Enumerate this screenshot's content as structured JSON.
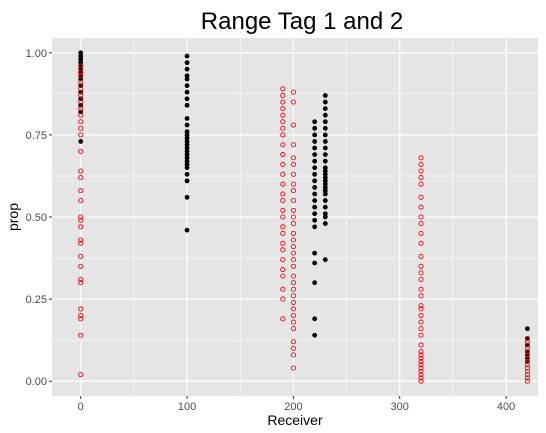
{
  "chart_data": {
    "type": "scatter",
    "title": "Range Tag 1 and 2",
    "xlabel": "Receiver",
    "ylabel": "prop",
    "xlim": [
      -27,
      430
    ],
    "ylim": [
      -0.045,
      1.045
    ],
    "x_ticks": [
      0,
      100,
      200,
      300,
      400
    ],
    "x_tick_labels": [
      "0",
      "100",
      "200",
      "300",
      "400"
    ],
    "y_ticks": [
      0,
      0.25,
      0.5,
      0.75,
      1
    ],
    "y_tick_labels": [
      "0.00",
      "0.25",
      "0.50",
      "0.75",
      "1.00"
    ],
    "grid": true,
    "panel_background": "#e5e5e5",
    "grid_color": "#ffffff",
    "legend": "none",
    "series": [
      {
        "marker": "filled-circle",
        "color": "#000000",
        "points": [
          [
            0,
            1.0
          ],
          [
            0,
            0.99
          ],
          [
            0,
            0.98
          ],
          [
            0,
            0.97
          ],
          [
            0,
            0.96
          ],
          [
            0,
            0.95
          ],
          [
            0,
            0.94
          ],
          [
            0,
            0.93
          ],
          [
            0,
            0.92
          ],
          [
            0,
            0.9
          ],
          [
            0,
            0.88
          ],
          [
            0,
            0.86
          ],
          [
            0,
            0.84
          ],
          [
            0,
            0.82
          ],
          [
            0,
            0.73
          ],
          [
            100,
            0.99
          ],
          [
            100,
            0.97
          ],
          [
            100,
            0.95
          ],
          [
            100,
            0.93
          ],
          [
            100,
            0.92
          ],
          [
            100,
            0.9
          ],
          [
            100,
            0.88
          ],
          [
            100,
            0.86
          ],
          [
            100,
            0.84
          ],
          [
            100,
            0.8
          ],
          [
            100,
            0.78
          ],
          [
            100,
            0.76
          ],
          [
            100,
            0.75
          ],
          [
            100,
            0.74
          ],
          [
            100,
            0.73
          ],
          [
            100,
            0.72
          ],
          [
            100,
            0.71
          ],
          [
            100,
            0.7
          ],
          [
            100,
            0.69
          ],
          [
            100,
            0.68
          ],
          [
            100,
            0.67
          ],
          [
            100,
            0.66
          ],
          [
            100,
            0.65
          ],
          [
            100,
            0.63
          ],
          [
            100,
            0.61
          ],
          [
            100,
            0.56
          ],
          [
            100,
            0.46
          ],
          [
            220,
            0.79
          ],
          [
            220,
            0.77
          ],
          [
            220,
            0.75
          ],
          [
            220,
            0.73
          ],
          [
            220,
            0.71
          ],
          [
            220,
            0.69
          ],
          [
            220,
            0.67
          ],
          [
            220,
            0.65
          ],
          [
            220,
            0.63
          ],
          [
            220,
            0.61
          ],
          [
            220,
            0.59
          ],
          [
            220,
            0.57
          ],
          [
            220,
            0.55
          ],
          [
            220,
            0.53
          ],
          [
            220,
            0.51
          ],
          [
            220,
            0.49
          ],
          [
            220,
            0.47
          ],
          [
            220,
            0.39
          ],
          [
            220,
            0.36
          ],
          [
            220,
            0.3
          ],
          [
            220,
            0.19
          ],
          [
            220,
            0.14
          ],
          [
            230,
            0.87
          ],
          [
            230,
            0.85
          ],
          [
            230,
            0.83
          ],
          [
            230,
            0.81
          ],
          [
            230,
            0.79
          ],
          [
            230,
            0.77
          ],
          [
            230,
            0.75
          ],
          [
            230,
            0.73
          ],
          [
            230,
            0.71
          ],
          [
            230,
            0.69
          ],
          [
            230,
            0.67
          ],
          [
            230,
            0.65
          ],
          [
            230,
            0.64
          ],
          [
            230,
            0.63
          ],
          [
            230,
            0.62
          ],
          [
            230,
            0.61
          ],
          [
            230,
            0.6
          ],
          [
            230,
            0.59
          ],
          [
            230,
            0.58
          ],
          [
            230,
            0.57
          ],
          [
            230,
            0.55
          ],
          [
            230,
            0.53
          ],
          [
            230,
            0.51
          ],
          [
            230,
            0.5
          ],
          [
            230,
            0.48
          ],
          [
            230,
            0.37
          ],
          [
            420,
            0.16
          ],
          [
            420,
            0.13
          ],
          [
            420,
            0.11
          ],
          [
            420,
            0.09
          ],
          [
            420,
            0.08
          ],
          [
            420,
            0.07
          ],
          [
            420,
            0.06
          ]
        ]
      },
      {
        "marker": "open-circle",
        "color": "#ff0000",
        "points": [
          [
            0,
            0.96
          ],
          [
            0,
            0.94
          ],
          [
            0,
            0.93
          ],
          [
            0,
            0.91
          ],
          [
            0,
            0.89
          ],
          [
            0,
            0.87
          ],
          [
            0,
            0.85
          ],
          [
            0,
            0.83
          ],
          [
            0,
            0.81
          ],
          [
            0,
            0.79
          ],
          [
            0,
            0.77
          ],
          [
            0,
            0.75
          ],
          [
            0,
            0.7
          ],
          [
            0,
            0.64
          ],
          [
            0,
            0.62
          ],
          [
            0,
            0.58
          ],
          [
            0,
            0.55
          ],
          [
            0,
            0.5
          ],
          [
            0,
            0.49
          ],
          [
            0,
            0.47
          ],
          [
            0,
            0.43
          ],
          [
            0,
            0.42
          ],
          [
            0,
            0.38
          ],
          [
            0,
            0.35
          ],
          [
            0,
            0.31
          ],
          [
            0,
            0.3
          ],
          [
            0,
            0.22
          ],
          [
            0,
            0.2
          ],
          [
            0,
            0.19
          ],
          [
            0,
            0.14
          ],
          [
            0,
            0.02
          ],
          [
            190,
            0.89
          ],
          [
            190,
            0.87
          ],
          [
            190,
            0.85
          ],
          [
            190,
            0.83
          ],
          [
            190,
            0.81
          ],
          [
            190,
            0.79
          ],
          [
            190,
            0.77
          ],
          [
            190,
            0.75
          ],
          [
            190,
            0.72
          ],
          [
            190,
            0.69
          ],
          [
            190,
            0.66
          ],
          [
            190,
            0.63
          ],
          [
            190,
            0.6
          ],
          [
            190,
            0.57
          ],
          [
            190,
            0.55
          ],
          [
            190,
            0.52
          ],
          [
            190,
            0.5
          ],
          [
            190,
            0.47
          ],
          [
            190,
            0.45
          ],
          [
            190,
            0.42
          ],
          [
            190,
            0.4
          ],
          [
            190,
            0.37
          ],
          [
            190,
            0.34
          ],
          [
            190,
            0.32
          ],
          [
            190,
            0.28
          ],
          [
            190,
            0.25
          ],
          [
            190,
            0.19
          ],
          [
            200,
            0.88
          ],
          [
            200,
            0.85
          ],
          [
            200,
            0.78
          ],
          [
            200,
            0.72
          ],
          [
            200,
            0.68
          ],
          [
            200,
            0.66
          ],
          [
            200,
            0.63
          ],
          [
            200,
            0.6
          ],
          [
            200,
            0.58
          ],
          [
            200,
            0.55
          ],
          [
            200,
            0.52
          ],
          [
            200,
            0.5
          ],
          [
            200,
            0.48
          ],
          [
            200,
            0.45
          ],
          [
            200,
            0.43
          ],
          [
            200,
            0.41
          ],
          [
            200,
            0.39
          ],
          [
            200,
            0.37
          ],
          [
            200,
            0.35
          ],
          [
            200,
            0.32
          ],
          [
            200,
            0.3
          ],
          [
            200,
            0.28
          ],
          [
            200,
            0.26
          ],
          [
            200,
            0.24
          ],
          [
            200,
            0.22
          ],
          [
            200,
            0.2
          ],
          [
            200,
            0.18
          ],
          [
            200,
            0.16
          ],
          [
            200,
            0.12
          ],
          [
            200,
            0.1
          ],
          [
            200,
            0.08
          ],
          [
            200,
            0.04
          ],
          [
            320,
            0.68
          ],
          [
            320,
            0.66
          ],
          [
            320,
            0.64
          ],
          [
            320,
            0.62
          ],
          [
            320,
            0.6
          ],
          [
            320,
            0.56
          ],
          [
            320,
            0.53
          ],
          [
            320,
            0.5
          ],
          [
            320,
            0.48
          ],
          [
            320,
            0.45
          ],
          [
            320,
            0.42
          ],
          [
            320,
            0.38
          ],
          [
            320,
            0.35
          ],
          [
            320,
            0.33
          ],
          [
            320,
            0.31
          ],
          [
            320,
            0.28
          ],
          [
            320,
            0.26
          ],
          [
            320,
            0.23
          ],
          [
            320,
            0.22
          ],
          [
            320,
            0.2
          ],
          [
            320,
            0.18
          ],
          [
            320,
            0.16
          ],
          [
            320,
            0.14
          ],
          [
            320,
            0.11
          ],
          [
            320,
            0.09
          ],
          [
            320,
            0.08
          ],
          [
            320,
            0.07
          ],
          [
            320,
            0.06
          ],
          [
            320,
            0.05
          ],
          [
            320,
            0.04
          ],
          [
            320,
            0.03
          ],
          [
            320,
            0.02
          ],
          [
            320,
            0.01
          ],
          [
            320,
            0.0
          ],
          [
            420,
            0.13
          ],
          [
            420,
            0.12
          ],
          [
            420,
            0.11
          ],
          [
            420,
            0.1
          ],
          [
            420,
            0.09
          ],
          [
            420,
            0.08
          ],
          [
            420,
            0.07
          ],
          [
            420,
            0.06
          ],
          [
            420,
            0.05
          ],
          [
            420,
            0.04
          ],
          [
            420,
            0.03
          ],
          [
            420,
            0.02
          ],
          [
            420,
            0.01
          ],
          [
            420,
            0.0
          ]
        ]
      }
    ]
  }
}
